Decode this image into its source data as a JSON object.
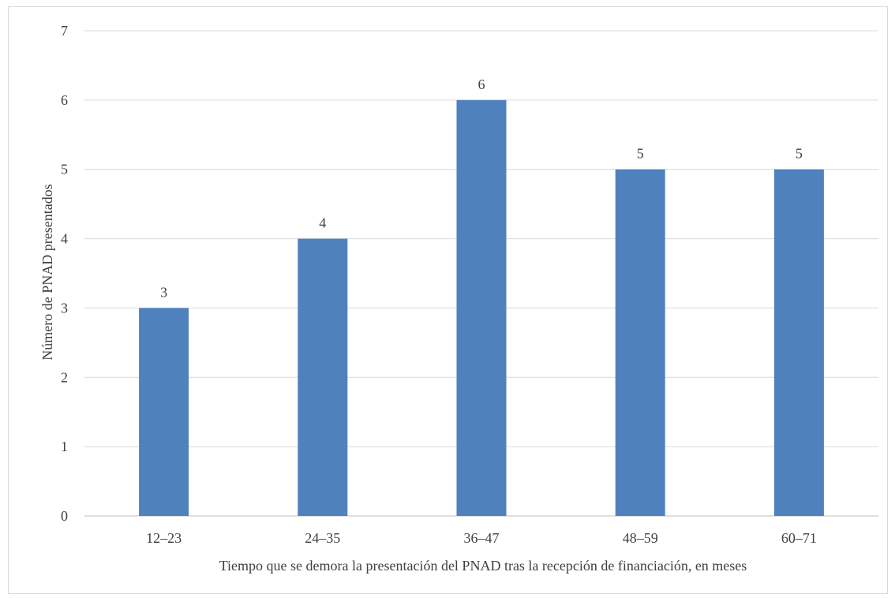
{
  "chart_data": {
    "type": "bar",
    "title": "",
    "xlabel": "Tiempo que se demora la presentación del PNAD tras la recepción de financiación, en meses",
    "ylabel": "Número de PNAD presentados",
    "categories": [
      "12–23",
      "24–35",
      "36–47",
      "48–59",
      "60–71"
    ],
    "values": [
      3,
      4,
      6,
      5,
      5
    ],
    "ylim": [
      0,
      7
    ],
    "yticks": [
      0,
      1,
      2,
      3,
      4,
      5,
      6,
      7
    ],
    "grid": true,
    "legend": "none",
    "bar_color": "#4f81bd",
    "data_labels": true
  }
}
